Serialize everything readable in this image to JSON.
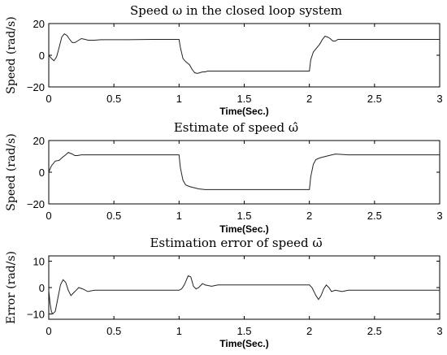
{
  "chart_data": [
    {
      "type": "line",
      "title": "Speed ω in the closed loop system",
      "xlabel": "Time(Sec.)",
      "ylabel": "Speed (rad/s)",
      "xlim": [
        0,
        3
      ],
      "ylim": [
        -20,
        20
      ],
      "xticks": [
        "0",
        "0.5",
        "1",
        "1.5",
        "2",
        "2.5",
        "3"
      ],
      "yticks": [
        "20",
        "0",
        "−20"
      ],
      "grid": false,
      "series": [
        {
          "x": [
            0,
            0.02,
            0.04,
            0.06,
            0.08,
            0.1,
            0.12,
            0.14,
            0.16,
            0.18,
            0.2,
            0.22,
            0.25,
            0.28,
            0.3,
            0.35,
            0.4,
            0.5,
            0.6,
            0.8,
            1.0,
            1.01,
            1.03,
            1.05,
            1.08,
            1.1,
            1.12,
            1.14,
            1.16,
            1.18,
            1.2,
            1.22,
            1.25,
            1.3,
            1.4,
            1.6,
            1.8,
            2.0,
            2.01,
            2.03,
            2.05,
            2.08,
            2.1,
            2.12,
            2.14,
            2.16,
            2.18,
            2.2,
            2.22,
            2.25,
            2.3,
            2.4,
            2.6,
            2.8,
            3.0
          ],
          "values": [
            0,
            -2,
            -3.5,
            -1,
            5,
            11.5,
            13.5,
            12.5,
            10,
            8,
            8,
            9,
            10.5,
            10,
            9.5,
            9.5,
            9.8,
            9.8,
            9.8,
            10,
            10,
            5,
            -2,
            -4,
            -6,
            -9,
            -11,
            -11.5,
            -11,
            -10.5,
            -10.5,
            -10,
            -10,
            -10,
            -10,
            -10,
            -10,
            -10,
            -3,
            2,
            4,
            7,
            10,
            12,
            11.5,
            10.5,
            9,
            9,
            10,
            10,
            10,
            10,
            10,
            10,
            10
          ]
        }
      ]
    },
    {
      "type": "line",
      "title": "Estimate of speed ω̂",
      "xlabel": "Time(Sec.)",
      "ylabel": "Speed (rad/s)",
      "xlim": [
        0,
        3
      ],
      "ylim": [
        -20,
        20
      ],
      "xticks": [
        "0",
        "0.5",
        "1",
        "1.5",
        "2",
        "2.5",
        "3"
      ],
      "yticks": [
        "20",
        "0",
        "−20"
      ],
      "grid": false,
      "series": [
        {
          "x": [
            0,
            0.02,
            0.05,
            0.08,
            0.1,
            0.13,
            0.15,
            0.18,
            0.2,
            0.22,
            0.25,
            0.3,
            0.4,
            0.6,
            0.8,
            1.0,
            1.01,
            1.03,
            1.05,
            1.08,
            1.1,
            1.15,
            1.2,
            1.3,
            1.4,
            1.6,
            1.8,
            2.0,
            2.01,
            2.03,
            2.05,
            2.08,
            2.1,
            2.15,
            2.2,
            2.3,
            2.4,
            2.6,
            2.8,
            3.0
          ],
          "values": [
            0,
            4,
            7,
            7.5,
            9,
            11,
            12.5,
            11.5,
            10.5,
            10.5,
            11,
            11,
            11,
            11,
            11,
            11,
            3,
            -5,
            -8,
            -9,
            -9.5,
            -10.5,
            -11,
            -11,
            -11,
            -11,
            -11,
            -11,
            -3,
            5,
            8,
            9,
            9.5,
            10.5,
            11.5,
            11,
            11,
            11,
            11,
            11
          ]
        }
      ]
    },
    {
      "type": "line",
      "title": "Estimation error of speed ω̄",
      "xlabel": "Time(Sec.)",
      "ylabel": "Error (rad/s)",
      "xlim": [
        0,
        3
      ],
      "ylim": [
        -12,
        12
      ],
      "xticks": [
        "0",
        "0.5",
        "1",
        "1.5",
        "2",
        "2.5",
        "3"
      ],
      "yticks": [
        "10",
        "0",
        "−10"
      ],
      "grid": false,
      "series": [
        {
          "x": [
            0,
            0.01,
            0.02,
            0.03,
            0.05,
            0.07,
            0.09,
            0.11,
            0.13,
            0.15,
            0.17,
            0.19,
            0.21,
            0.23,
            0.26,
            0.3,
            0.35,
            0.4,
            0.5,
            0.6,
            0.8,
            1.0,
            1.02,
            1.04,
            1.07,
            1.09,
            1.11,
            1.13,
            1.15,
            1.18,
            1.2,
            1.25,
            1.3,
            1.35,
            1.4,
            1.6,
            1.8,
            2.0,
            2.02,
            2.05,
            2.07,
            2.09,
            2.11,
            2.13,
            2.15,
            2.17,
            2.2,
            2.25,
            2.3,
            2.4,
            2.6,
            2.8,
            3.0
          ],
          "values": [
            -1,
            -6,
            -9,
            -10,
            -9,
            -4,
            1,
            3,
            2,
            -1,
            -3,
            -2,
            -1,
            0,
            -0.5,
            -1.5,
            -1,
            -1,
            -1,
            -1,
            -1,
            -1,
            -0.5,
            1,
            4.5,
            4,
            0.5,
            -0.5,
            0,
            1.5,
            1,
            0.5,
            1,
            1,
            1,
            1,
            1,
            1,
            0,
            -3,
            -4.5,
            -3,
            -0.5,
            1,
            0,
            -1.5,
            -1,
            -1.5,
            -1,
            -1,
            -1,
            -1,
            -1
          ]
        }
      ]
    }
  ]
}
